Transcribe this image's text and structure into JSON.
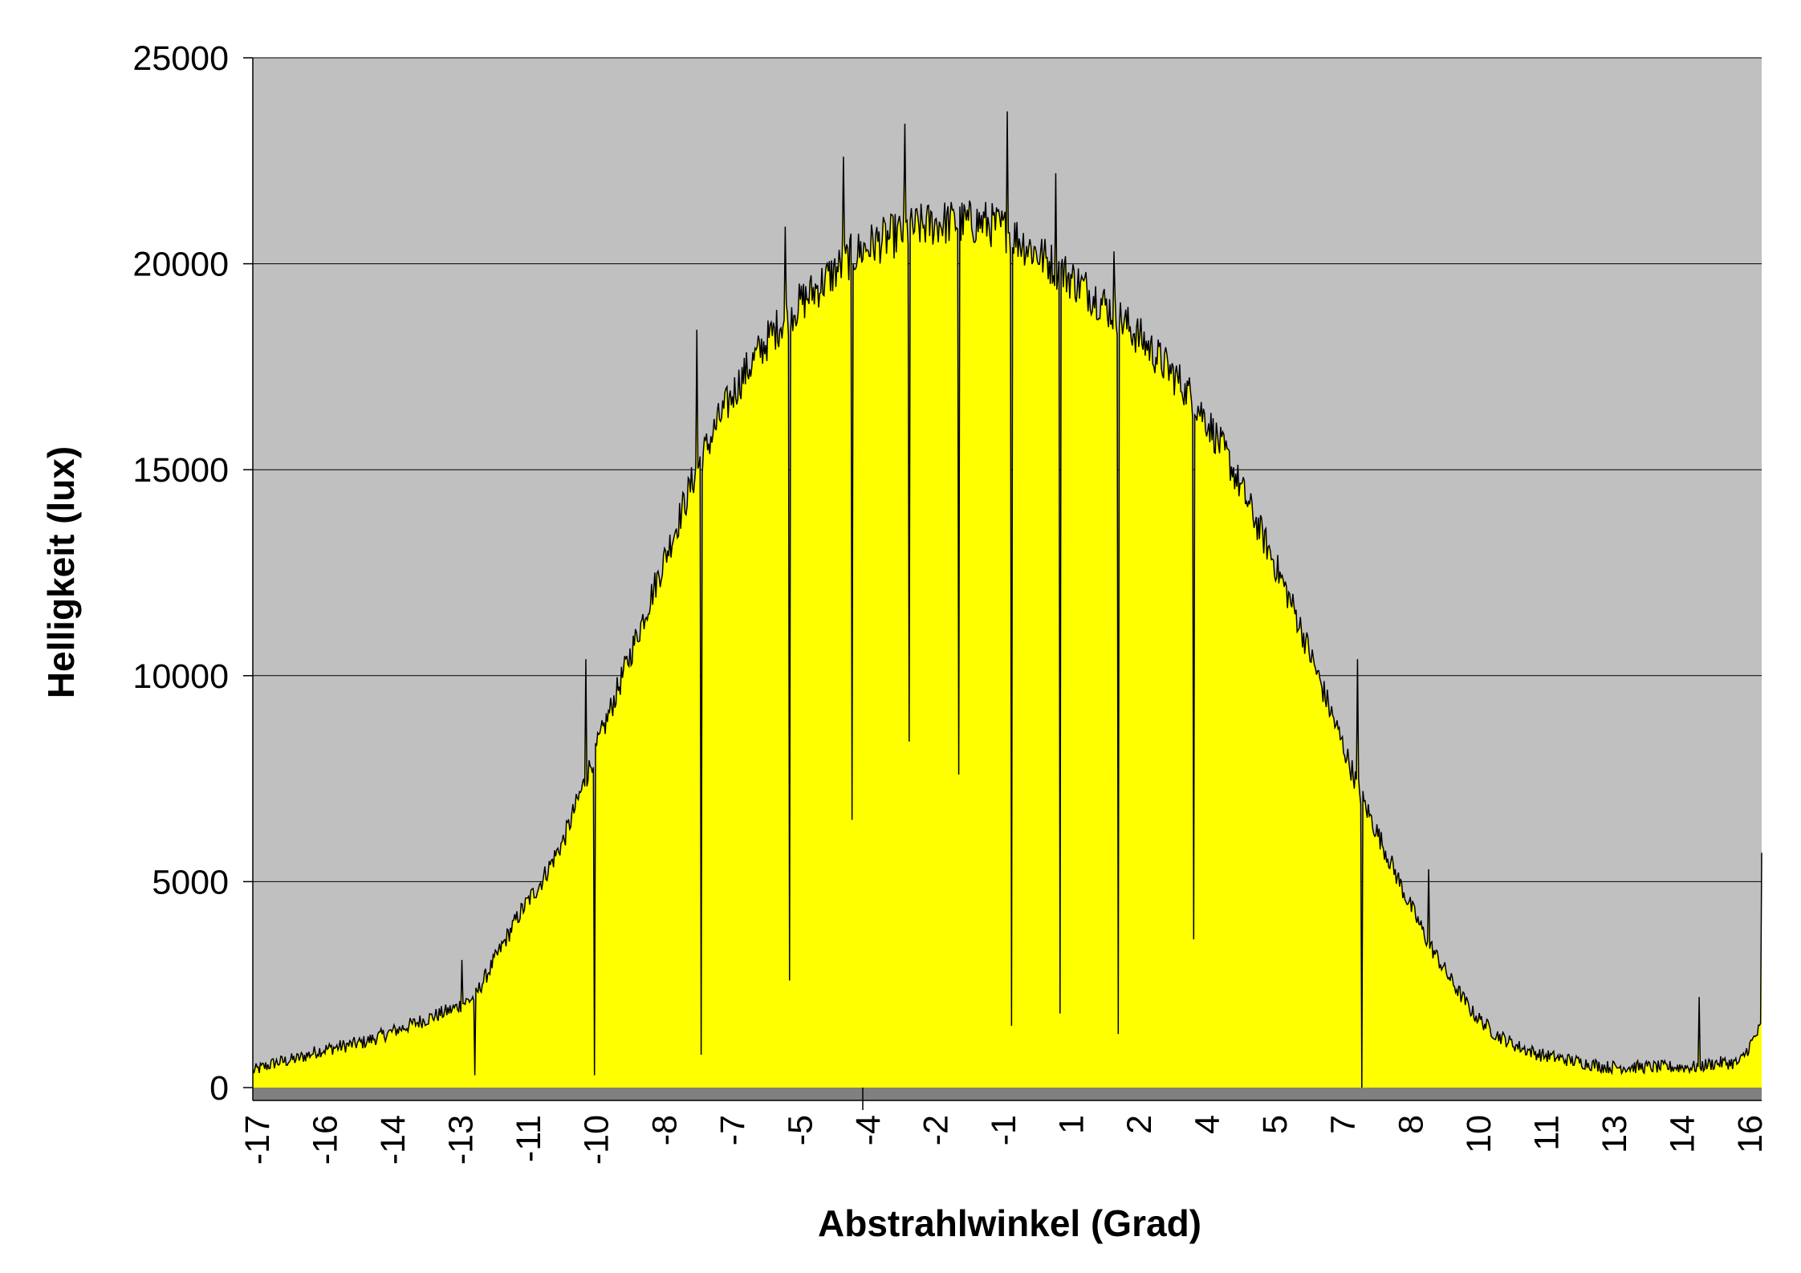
{
  "chart_data": {
    "type": "area",
    "title": "",
    "xlabel": "Abstrahlwinkel (Grad)",
    "ylabel": "Helligkeit (lux)",
    "xlim": [
      -17,
      17
    ],
    "ylim": [
      0,
      25000
    ],
    "grid": true,
    "legend": "none",
    "y_ticks": [
      0,
      5000,
      10000,
      15000,
      20000,
      25000
    ],
    "x_tick_labels": [
      "-17",
      "-16",
      "-14",
      "-13",
      "-11",
      "-10",
      "-8",
      "-7",
      "-5",
      "-4",
      "-2",
      "-1",
      "1",
      "2",
      "4",
      "5",
      "7",
      "8",
      "10",
      "11",
      "13",
      "14",
      "16"
    ],
    "colors": {
      "plot_bg": "#C0C0C0",
      "fill": "#FFFF00",
      "line": "#000000",
      "floor": "#808080",
      "grid": "#000000"
    },
    "series": [
      {
        "x": [
          -17,
          -16.5,
          -16,
          -15.5,
          -15,
          -14.5,
          -14,
          -13.5,
          -13,
          -12.5,
          -12,
          -11.5,
          -11,
          -10.5,
          -10,
          -9.5,
          -9,
          -8.5,
          -8,
          -7.5,
          -7,
          -6.5,
          -6,
          -5.5,
          -5,
          -4.5,
          -4,
          -3.5,
          -3,
          -2.5,
          -2,
          -1.5,
          -1,
          -0.5,
          0,
          0.5,
          1,
          1.5,
          2,
          2.5,
          3,
          3.5,
          4,
          4.5,
          5,
          5.5,
          6,
          6.5,
          7,
          7.5,
          8,
          8.5,
          9,
          9.5,
          10,
          10.5,
          11,
          11.5,
          12,
          12.5,
          13,
          13.5,
          14,
          14.5,
          15,
          15.5,
          16,
          16.5,
          17
        ],
        "values": [
          400,
          600,
          700,
          900,
          1000,
          1100,
          1300,
          1500,
          1700,
          1900,
          2200,
          3200,
          4200,
          5000,
          6000,
          7500,
          9000,
          10500,
          12000,
          13500,
          15000,
          16200,
          17200,
          18000,
          18700,
          19200,
          19700,
          20200,
          20500,
          20700,
          20900,
          21000,
          21000,
          21000,
          20800,
          20400,
          20000,
          19600,
          19200,
          18700,
          18200,
          17600,
          17000,
          16200,
          15200,
          14000,
          12800,
          11500,
          10000,
          8500,
          7000,
          5800,
          4600,
          3500,
          2600,
          1800,
          1300,
          1000,
          800,
          700,
          600,
          500,
          500,
          500,
          500,
          500,
          600,
          600,
          1500
        ],
        "dips": [
          {
            "x": -12,
            "value": 300
          },
          {
            "x": -9.3,
            "value": 300
          },
          {
            "x": -6.9,
            "value": 800
          },
          {
            "x": -4.9,
            "value": 2600
          },
          {
            "x": -3.5,
            "value": 6500
          },
          {
            "x": -2.2,
            "value": 8400
          },
          {
            "x": -1.1,
            "value": 7600
          },
          {
            "x": 0.1,
            "value": 1500
          },
          {
            "x": 1.2,
            "value": 1800
          },
          {
            "x": 2.5,
            "value": 1300
          },
          {
            "x": 4.2,
            "value": 3600
          },
          {
            "x": 8.0,
            "value": 0
          }
        ],
        "spikes": [
          {
            "x": -12.3,
            "value": 3100
          },
          {
            "x": -9.5,
            "value": 10400
          },
          {
            "x": -7.0,
            "value": 18400
          },
          {
            "x": -5.0,
            "value": 20900
          },
          {
            "x": -3.7,
            "value": 22600
          },
          {
            "x": -2.3,
            "value": 23400
          },
          {
            "x": -1.2,
            "value": 21200
          },
          {
            "x": 0.0,
            "value": 23700
          },
          {
            "x": 1.1,
            "value": 22200
          },
          {
            "x": 2.4,
            "value": 20300
          },
          {
            "x": 4.0,
            "value": 17100
          },
          {
            "x": 7.9,
            "value": 10400
          },
          {
            "x": 9.5,
            "value": 5300
          },
          {
            "x": 15.6,
            "value": 2200
          },
          {
            "x": 17.0,
            "value": 5700
          }
        ]
      }
    ]
  }
}
